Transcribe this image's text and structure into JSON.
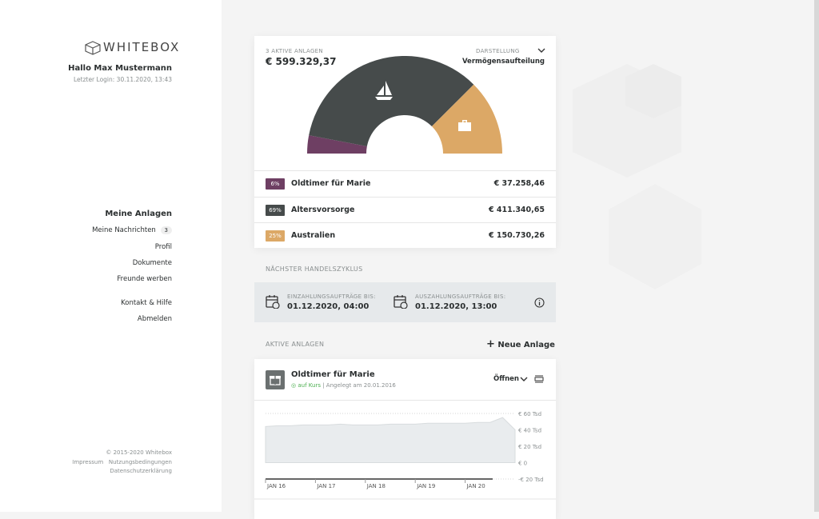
{
  "sidebar": {
    "brand": "WHITEBOX",
    "greeting": "Hallo Max Mustermann",
    "last_login": "Letzter Login: 30.11.2020, 13:43",
    "nav": [
      {
        "label": "Meine Anlagen"
      },
      {
        "label": "Meine Nachrichten",
        "badge": 3
      },
      {
        "label": "Profil"
      },
      {
        "label": "Dokumente"
      },
      {
        "label": "Freunde werben"
      },
      {
        "label": "Kontakt & Hilfe"
      },
      {
        "label": "Abmelden"
      }
    ],
    "footer": {
      "copyright": "© 2015-2020 Whitebox",
      "links": [
        "Impressum",
        "Nutzungsbedingungen",
        "Datenschutzerklärung"
      ]
    }
  },
  "portfolio": {
    "count_label": "3 AKTIVE ANLAGEN",
    "total": "€ 599.329,37",
    "view_label": "DARSTELLUNG",
    "view": "Vermögensaufteilung",
    "allocation": {
      "type": "pie",
      "names": [
        "Oldtimer für Marie",
        "Altersvorsorge",
        "Australien"
      ],
      "values": [
        6,
        69,
        25
      ],
      "value_labels": [
        "6%",
        "69%",
        "25%"
      ],
      "amounts": [
        "€ 37.258,46",
        "€ 411.340,65",
        "€ 150.730,26"
      ],
      "colors": [
        "#6e3f63",
        "#464b4b",
        "#dca866"
      ]
    }
  },
  "cycle": {
    "title": "NÄCHSTER HANDELSZYKLUS",
    "items": [
      {
        "label": "EINZAHLUNGSAUFTRÄGE BIS:",
        "value": "01.12.2020, 04:00"
      },
      {
        "label": "AUSZAHLUNGSAUFTRÄGE BIS:",
        "value": "01.12.2020, 13:00"
      }
    ]
  },
  "active": {
    "title": "AKTIVE ANLAGEN",
    "new_button": "Neue Anlage",
    "investment": {
      "name": "Oldtimer für Marie",
      "status": "auf Kurs",
      "created": "Angelegt am 20.01.2016",
      "open": "Öffnen",
      "chart": {
        "type": "area",
        "categories": [
          "JAN 16",
          "JAN 17",
          "JAN 18",
          "JAN 19",
          "JAN 20"
        ],
        "values": [
          44,
          45,
          45,
          46,
          46,
          46,
          47,
          46,
          46,
          46,
          47,
          47,
          47,
          48,
          48,
          48,
          48,
          49,
          49,
          55,
          40
        ],
        "color": "#e9ecee",
        "ylim": [
          -20,
          60
        ],
        "yticks": [
          {
            "value": 60,
            "label": "€ 60 Tsd"
          },
          {
            "value": 40,
            "label": "€ 40 Tsd"
          },
          {
            "value": 20,
            "label": "€ 20 Tsd"
          },
          {
            "value": 0,
            "label": "€ 0"
          },
          {
            "value": -20,
            "label": "-€ 20 Tsd"
          }
        ],
        "grid": true
      }
    }
  }
}
